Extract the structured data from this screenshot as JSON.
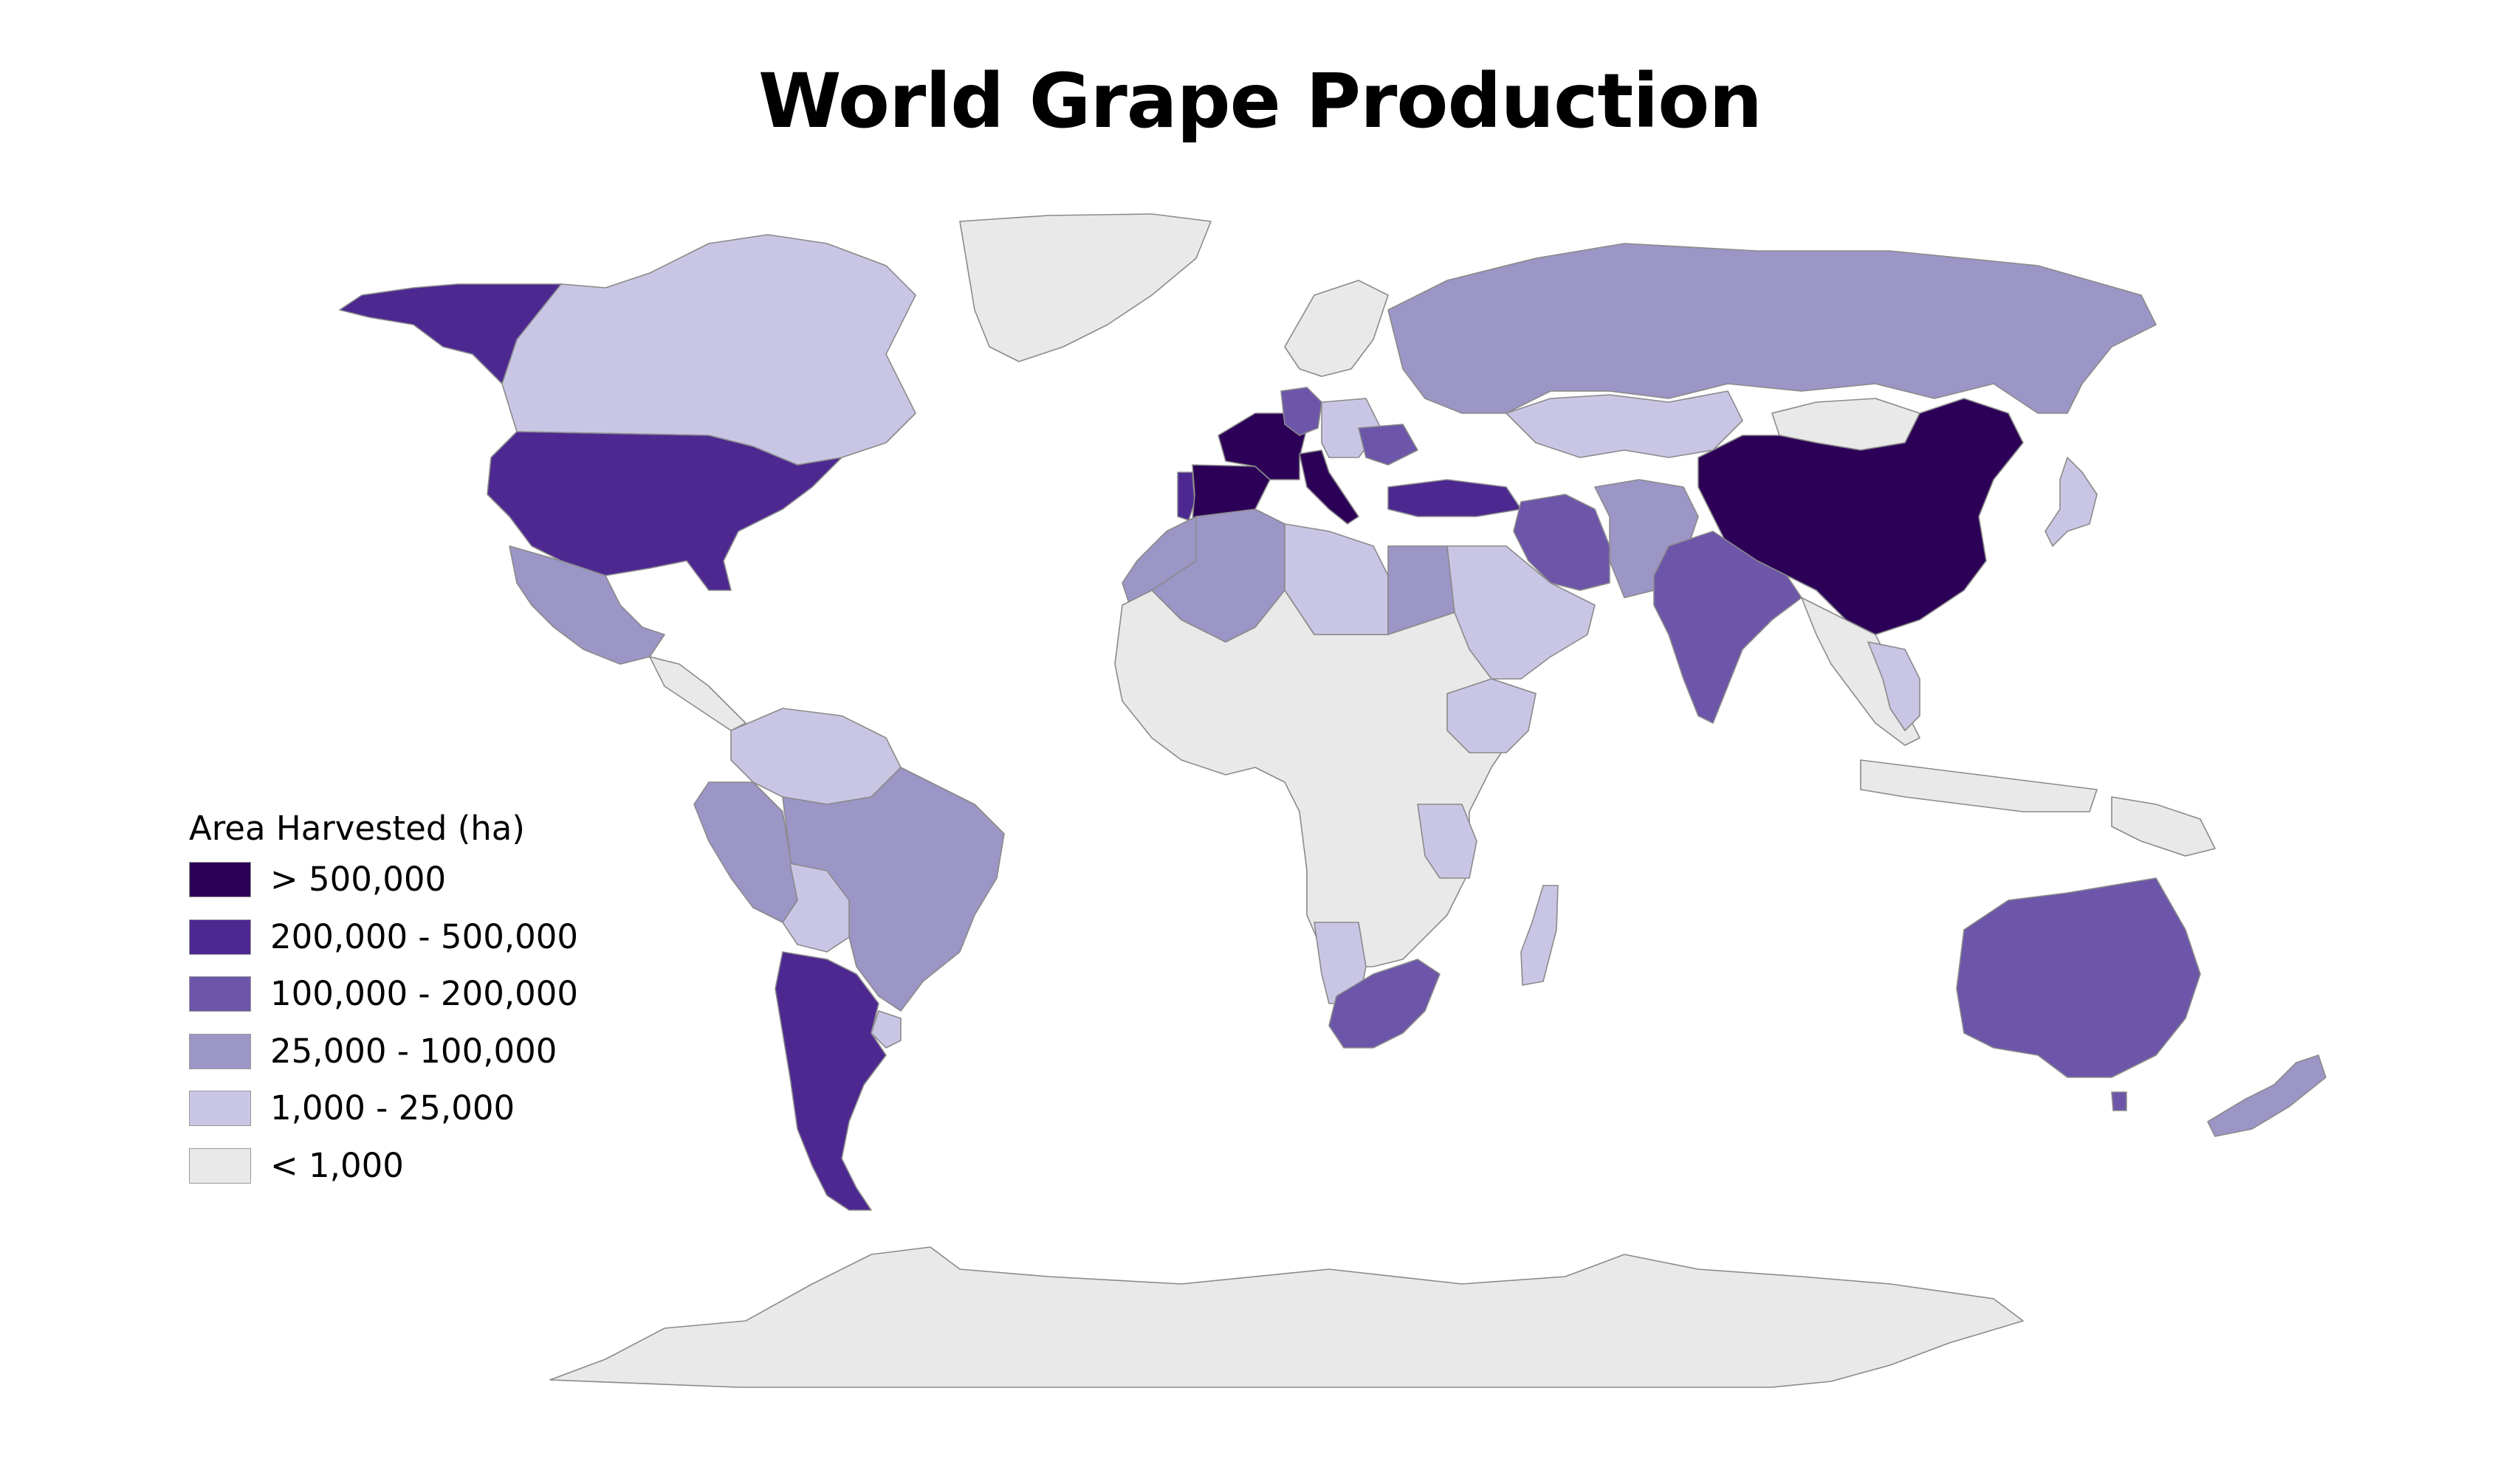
{
  "title": "World Grape Production",
  "legend": {
    "title": "Area Harvested (ha)",
    "classes": [
      {
        "label": "> 500,000",
        "color": "#2d0058",
        "class": "c5"
      },
      {
        "label": "200,000 - 500,000",
        "color": "#4d2891",
        "class": "c4"
      },
      {
        "label": "100,000 - 200,000",
        "color": "#6d56aa",
        "class": "c3"
      },
      {
        "label": "25,000 - 100,000",
        "color": "#9b96c6",
        "class": "c2"
      },
      {
        "label": "1,000 - 25,000",
        "color": "#c9c6e5",
        "class": "c1"
      },
      {
        "label": "< 1,000",
        "color": "#e9e9e9",
        "class": "c0"
      }
    ]
  },
  "regions": [
    {
      "name": "china",
      "class": "c5"
    },
    {
      "name": "france",
      "class": "c5"
    },
    {
      "name": "spain",
      "class": "c5"
    },
    {
      "name": "italy",
      "class": "c5"
    },
    {
      "name": "united-states",
      "class": "c4"
    },
    {
      "name": "alaska",
      "class": "c4"
    },
    {
      "name": "argentina",
      "class": "c4"
    },
    {
      "name": "turkey",
      "class": "c4"
    },
    {
      "name": "portugal",
      "class": "c4"
    },
    {
      "name": "australia",
      "class": "c3"
    },
    {
      "name": "india",
      "class": "c3"
    },
    {
      "name": "iran",
      "class": "c3"
    },
    {
      "name": "south-africa",
      "class": "c3"
    },
    {
      "name": "romania",
      "class": "c3"
    },
    {
      "name": "germany",
      "class": "c3"
    },
    {
      "name": "russia",
      "class": "c2"
    },
    {
      "name": "brazil",
      "class": "c2"
    },
    {
      "name": "peru",
      "class": "c2"
    },
    {
      "name": "mexico",
      "class": "c2"
    },
    {
      "name": "algeria",
      "class": "c2"
    },
    {
      "name": "egypt",
      "class": "c2"
    },
    {
      "name": "morocco",
      "class": "c2"
    },
    {
      "name": "afghanistan",
      "class": "c2"
    },
    {
      "name": "new-zealand",
      "class": "c2"
    },
    {
      "name": "canada",
      "class": "c1"
    },
    {
      "name": "kazakhstan",
      "class": "c1"
    },
    {
      "name": "colombia",
      "class": "c1"
    },
    {
      "name": "bolivia",
      "class": "c1"
    },
    {
      "name": "libya",
      "class": "c1"
    },
    {
      "name": "saudi-arabia",
      "class": "c1"
    },
    {
      "name": "ethiopia",
      "class": "c1"
    },
    {
      "name": "tanzania",
      "class": "c1"
    },
    {
      "name": "namibia",
      "class": "c1"
    },
    {
      "name": "madagascar",
      "class": "c1"
    },
    {
      "name": "thailand",
      "class": "c1"
    },
    {
      "name": "japan",
      "class": "c1"
    },
    {
      "name": "uruguay",
      "class": "c1"
    },
    {
      "name": "greenland",
      "class": "c0"
    },
    {
      "name": "africa-other",
      "class": "c0"
    },
    {
      "name": "mongolia",
      "class": "c0"
    },
    {
      "name": "indonesia",
      "class": "c0"
    },
    {
      "name": "papua-new-guinea",
      "class": "c0"
    },
    {
      "name": "antarctica",
      "class": "c0"
    }
  ]
}
